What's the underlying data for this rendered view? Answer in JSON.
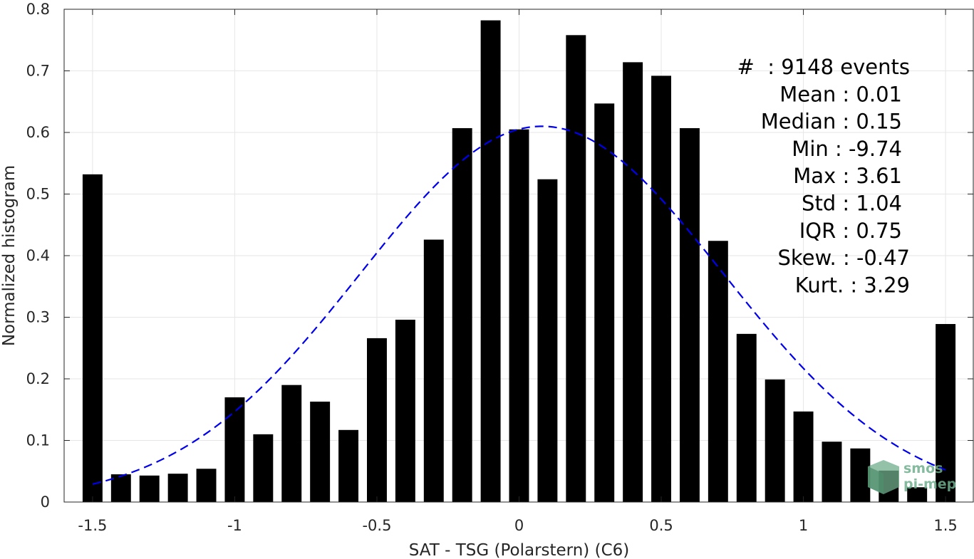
{
  "chart_data": {
    "type": "bar",
    "xlabel": "SAT - TSG (Polarstern) (C6)",
    "ylabel": "Normalized histogram",
    "xlim": [
      -1.6,
      1.6
    ],
    "ylim": [
      0,
      0.8
    ],
    "xticks": [
      -1.5,
      -1,
      -0.5,
      0,
      0.5,
      1,
      1.5
    ],
    "xtick_labels": [
      "-1.5",
      "-1",
      "-0.5",
      "0",
      "0.5",
      "1",
      "1.5"
    ],
    "yticks": [
      0,
      0.1,
      0.2,
      0.3,
      0.4,
      0.5,
      0.6,
      0.7,
      0.8
    ],
    "ytick_labels": [
      "0",
      "0.1",
      "0.2",
      "0.3",
      "0.4",
      "0.5",
      "0.6",
      "0.7",
      "0.8"
    ],
    "grid": true,
    "bar_color": "#000000",
    "bins": [
      -1.5,
      -1.4,
      -1.3,
      -1.2,
      -1.1,
      -1.0,
      -0.9,
      -0.8,
      -0.7,
      -0.6,
      -0.5,
      -0.4,
      -0.3,
      -0.2,
      -0.1,
      0.0,
      0.1,
      0.2,
      0.3,
      0.4,
      0.5,
      0.6,
      0.7,
      0.8,
      0.9,
      1.0,
      1.1,
      1.2,
      1.3,
      1.4,
      1.5
    ],
    "values": [
      0.532,
      0.045,
      0.043,
      0.046,
      0.054,
      0.17,
      0.11,
      0.19,
      0.163,
      0.117,
      0.266,
      0.296,
      0.426,
      0.607,
      0.782,
      0.605,
      0.524,
      0.758,
      0.647,
      0.714,
      0.692,
      0.607,
      0.424,
      0.273,
      0.199,
      0.147,
      0.098,
      0.087,
      0.051,
      0.024,
      0.289
    ],
    "fit_curve": {
      "style": "dashed",
      "color": "#0000ee",
      "mean": 0.08,
      "std": 0.64,
      "peak": 0.61,
      "x_range": [
        -1.5,
        1.5
      ]
    },
    "stats": [
      {
        "label": "#  : 9148 events"
      },
      {
        "label": "Mean : 0.01"
      },
      {
        "label": "Median : 0.15"
      },
      {
        "label": "Min : -9.74"
      },
      {
        "label": "Max : 3.61"
      },
      {
        "label": "Std : 1.04"
      },
      {
        "label": "IQR : 0.75"
      },
      {
        "label": "Skew. : -0.47"
      },
      {
        "label": "Kurt. : 3.29"
      }
    ]
  },
  "logo": {
    "line1": "smos",
    "line2": "pi-mep",
    "color": "#6fae8c"
  }
}
